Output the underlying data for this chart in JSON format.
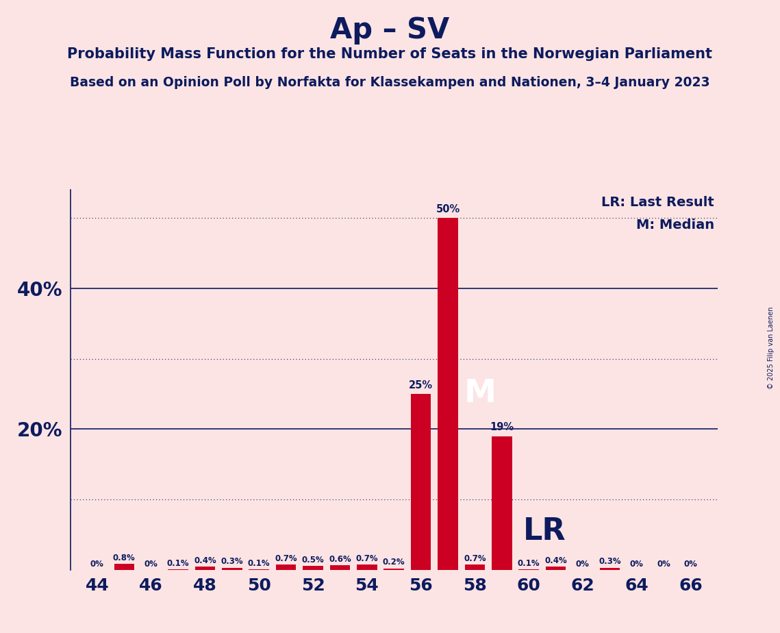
{
  "title": "Ap – SV",
  "subtitle1": "Probability Mass Function for the Number of Seats in the Norwegian Parliament",
  "subtitle2": "Based on an Opinion Poll by Norfakta for Klassekampen and Nationen, 3–4 January 2023",
  "copyright": "© 2025 Filip van Laenen",
  "background_color": "#fce4e4",
  "bar_color": "#cc0022",
  "text_color": "#0d1b5e",
  "seats": [
    44,
    45,
    46,
    47,
    48,
    49,
    50,
    51,
    52,
    53,
    54,
    55,
    56,
    57,
    58,
    59,
    60,
    61,
    62,
    63,
    64,
    65,
    66
  ],
  "values": [
    0.0,
    0.8,
    0.0,
    0.1,
    0.4,
    0.3,
    0.1,
    0.7,
    0.5,
    0.6,
    0.7,
    0.2,
    25.0,
    50.0,
    0.7,
    19.0,
    0.1,
    0.4,
    0.0,
    0.3,
    0.0,
    0.0,
    0.0
  ],
  "labels": [
    "0%",
    "0.8%",
    "0%",
    "0.1%",
    "0.4%",
    "0.3%",
    "0.1%",
    "0.7%",
    "0.5%",
    "0.6%",
    "0.7%",
    "0.2%",
    "25%",
    "50%",
    "0.7%",
    "19%",
    "0.1%",
    "0.4%",
    "0%",
    "0.3%",
    "0%",
    "0%",
    "0%"
  ],
  "median_seat": 57,
  "lr_seat": 59,
  "ytick_values": [
    20,
    40
  ],
  "ytick_dotted": [
    10,
    30,
    50
  ],
  "ylim": [
    0,
    54
  ],
  "xlabel_seats": [
    44,
    46,
    48,
    50,
    52,
    54,
    56,
    58,
    60,
    62,
    64,
    66
  ],
  "bar_width": 0.75
}
